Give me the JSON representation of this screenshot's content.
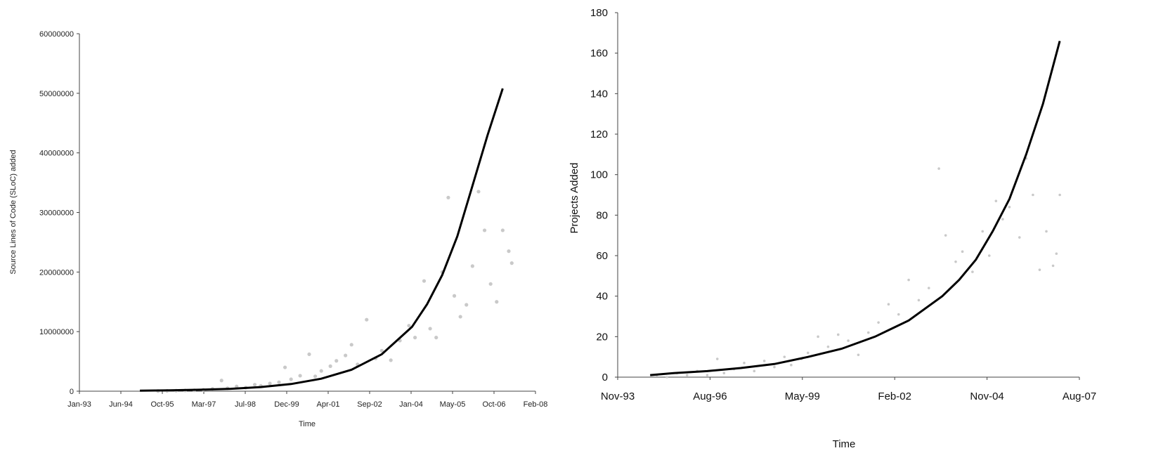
{
  "chart_data": [
    {
      "type": "scatter",
      "xlabel": "Time",
      "ylabel": "Source Lines of Code (SLoC) added",
      "x_ticks": [
        "Jan-93",
        "Jun-94",
        "Oct-95",
        "Mar-97",
        "Jul-98",
        "Dec-99",
        "Apr-01",
        "Sep-02",
        "Jan-04",
        "May-05",
        "Oct-06",
        "Feb-08"
      ],
      "xlim": [
        "1993-01",
        "2008-02"
      ],
      "y_ticks": [
        "0",
        "10000000",
        "20000000",
        "30000000",
        "40000000",
        "50000000",
        "60000000"
      ],
      "ylim": [
        0,
        60000000
      ],
      "grid": false,
      "series": [
        {
          "kind": "points",
          "points": [
            [
              1995.6,
              30000
            ],
            [
              1995.9,
              60000
            ],
            [
              1996.2,
              90000
            ],
            [
              1996.5,
              120000
            ],
            [
              1996.8,
              150000
            ],
            [
              1997.1,
              250000
            ],
            [
              1997.4,
              400000
            ],
            [
              1997.7,
              1800000
            ],
            [
              1997.9,
              500000
            ],
            [
              1998.2,
              800000
            ],
            [
              1998.5,
              600000
            ],
            [
              1998.8,
              1100000
            ],
            [
              1999.0,
              900000
            ],
            [
              1999.3,
              1300000
            ],
            [
              1999.6,
              1500000
            ],
            [
              1999.8,
              4000000
            ],
            [
              2000.0,
              2000000
            ],
            [
              2000.3,
              2600000
            ],
            [
              2000.6,
              6200000
            ],
            [
              2000.8,
              2500000
            ],
            [
              2001.0,
              3400000
            ],
            [
              2001.3,
              4200000
            ],
            [
              2001.5,
              5100000
            ],
            [
              2001.8,
              6000000
            ],
            [
              2002.0,
              7800000
            ],
            [
              2002.2,
              4500000
            ],
            [
              2002.5,
              12000000
            ],
            [
              2002.8,
              5500000
            ],
            [
              2003.0,
              6800000
            ],
            [
              2003.3,
              5200000
            ],
            [
              2003.6,
              8500000
            ],
            [
              2003.9,
              11000000
            ],
            [
              2004.1,
              9000000
            ],
            [
              2004.4,
              18500000
            ],
            [
              2004.6,
              10500000
            ],
            [
              2004.8,
              9000000
            ],
            [
              2005.0,
              20000000
            ],
            [
              2005.2,
              32500000
            ],
            [
              2005.4,
              16000000
            ],
            [
              2005.6,
              12500000
            ],
            [
              2005.8,
              14500000
            ],
            [
              2006.0,
              21000000
            ],
            [
              2006.2,
              33500000
            ],
            [
              2006.4,
              27000000
            ],
            [
              2006.6,
              18000000
            ],
            [
              2006.8,
              15000000
            ],
            [
              2007.0,
              27000000
            ],
            [
              2007.2,
              23500000
            ],
            [
              2007.3,
              21500000
            ]
          ]
        },
        {
          "kind": "fit-line",
          "points": [
            [
              1995.0,
              100000
            ],
            [
              1996.0,
              150000
            ],
            [
              1997.0,
              250000
            ],
            [
              1998.0,
              400000
            ],
            [
              1999.0,
              700000
            ],
            [
              2000.0,
              1200000
            ],
            [
              2001.0,
              2100000
            ],
            [
              2002.0,
              3600000
            ],
            [
              2003.0,
              6200000
            ],
            [
              2004.0,
              10800000
            ],
            [
              2004.5,
              14600000
            ],
            [
              2005.0,
              19500000
            ],
            [
              2005.5,
              26000000
            ],
            [
              2006.0,
              34500000
            ],
            [
              2006.5,
              43000000
            ],
            [
              2007.0,
              50800000
            ]
          ]
        }
      ]
    },
    {
      "type": "scatter",
      "xlabel": "Time",
      "ylabel": "Projects Added",
      "x_ticks": [
        "Nov-93",
        "Aug-96",
        "May-99",
        "Feb-02",
        "Nov-04",
        "Aug-07"
      ],
      "xlim": [
        "1993-11",
        "2007-08"
      ],
      "y_ticks": [
        "0",
        "20",
        "40",
        "60",
        "80",
        "100",
        "120",
        "140",
        "160",
        "180"
      ],
      "ylim": [
        0,
        180
      ],
      "grid": false,
      "series": [
        {
          "kind": "points",
          "points": [
            [
              1995.0,
              1
            ],
            [
              1995.3,
              0
            ],
            [
              1995.6,
              2
            ],
            [
              1995.9,
              1
            ],
            [
              1996.2,
              3
            ],
            [
              1996.5,
              1
            ],
            [
              1996.8,
              9
            ],
            [
              1997.0,
              2
            ],
            [
              1997.3,
              4
            ],
            [
              1997.6,
              7
            ],
            [
              1997.9,
              3
            ],
            [
              1998.2,
              8
            ],
            [
              1998.5,
              5
            ],
            [
              1998.8,
              10
            ],
            [
              1999.0,
              6
            ],
            [
              1999.3,
              9
            ],
            [
              1999.5,
              12
            ],
            [
              1999.8,
              20
            ],
            [
              2000.1,
              15
            ],
            [
              2000.4,
              21
            ],
            [
              2000.7,
              18
            ],
            [
              2001.0,
              11
            ],
            [
              2001.3,
              22
            ],
            [
              2001.6,
              27
            ],
            [
              2001.9,
              36
            ],
            [
              2002.2,
              31
            ],
            [
              2002.5,
              48
            ],
            [
              2002.8,
              38
            ],
            [
              2003.1,
              44
            ],
            [
              2003.4,
              103
            ],
            [
              2003.6,
              70
            ],
            [
              2003.9,
              57
            ],
            [
              2004.1,
              62
            ],
            [
              2004.4,
              52
            ],
            [
              2004.7,
              72
            ],
            [
              2004.9,
              60
            ],
            [
              2005.1,
              87
            ],
            [
              2005.3,
              78
            ],
            [
              2005.5,
              84
            ],
            [
              2005.8,
              69
            ],
            [
              2006.0,
              108
            ],
            [
              2006.2,
              90
            ],
            [
              2006.4,
              53
            ],
            [
              2006.6,
              72
            ],
            [
              2006.8,
              55
            ],
            [
              2007.0,
              90
            ],
            [
              2006.9,
              61
            ]
          ]
        },
        {
          "kind": "fit-line",
          "points": [
            [
              1994.8,
              1
            ],
            [
              1995.5,
              2
            ],
            [
              1996.5,
              3
            ],
            [
              1997.5,
              4.5
            ],
            [
              1998.5,
              6.5
            ],
            [
              1999.5,
              10
            ],
            [
              2000.5,
              14
            ],
            [
              2001.5,
              20
            ],
            [
              2002.5,
              28
            ],
            [
              2003.5,
              40
            ],
            [
              2004.0,
              48
            ],
            [
              2004.5,
              58
            ],
            [
              2005.0,
              72
            ],
            [
              2005.5,
              88
            ],
            [
              2006.0,
              110
            ],
            [
              2006.5,
              135
            ],
            [
              2007.0,
              166
            ]
          ]
        }
      ]
    }
  ]
}
